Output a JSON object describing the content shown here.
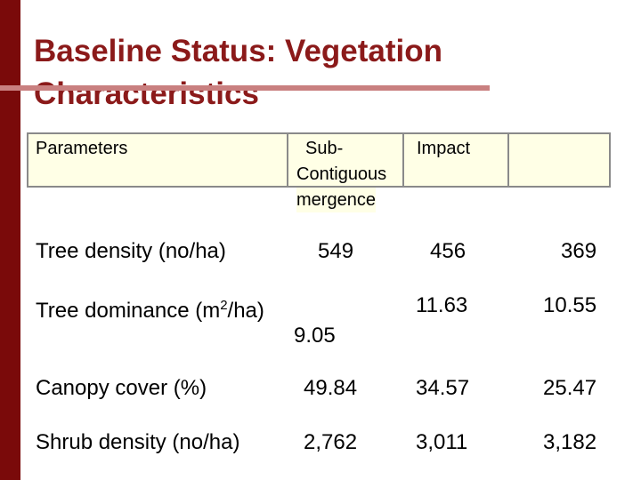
{
  "title": "Baseline Status: Vegetation Characteristics",
  "header": {
    "col0": "Parameters",
    "col1_line1": "Sub-",
    "col1_line2": "Contiguous",
    "col1_line3": "mergence",
    "col2": "Impact",
    "col3": ""
  },
  "rows": [
    {
      "label": "Tree density (no/ha)",
      "v1": "549",
      "v2": "456",
      "v3": "369"
    },
    {
      "label_pre": "Tree dominance (m",
      "label_sup": "2",
      "label_post": "/ha)",
      "v1": "9.05",
      "v2": "11.63",
      "v3": "10.55"
    },
    {
      "label": "Canopy cover (%)",
      "v1": "49.84",
      "v2": "34.57",
      "v3": "25.47"
    },
    {
      "label": "Shrub density (no/ha)",
      "v1": "2,762",
      "v2": "3,011",
      "v3": "3,182"
    }
  ],
  "colors": {
    "accent_bar": "#7a0a0a",
    "title": "#8b1a1a",
    "header_bg": "#ffffe6",
    "rule": "#c98080"
  }
}
